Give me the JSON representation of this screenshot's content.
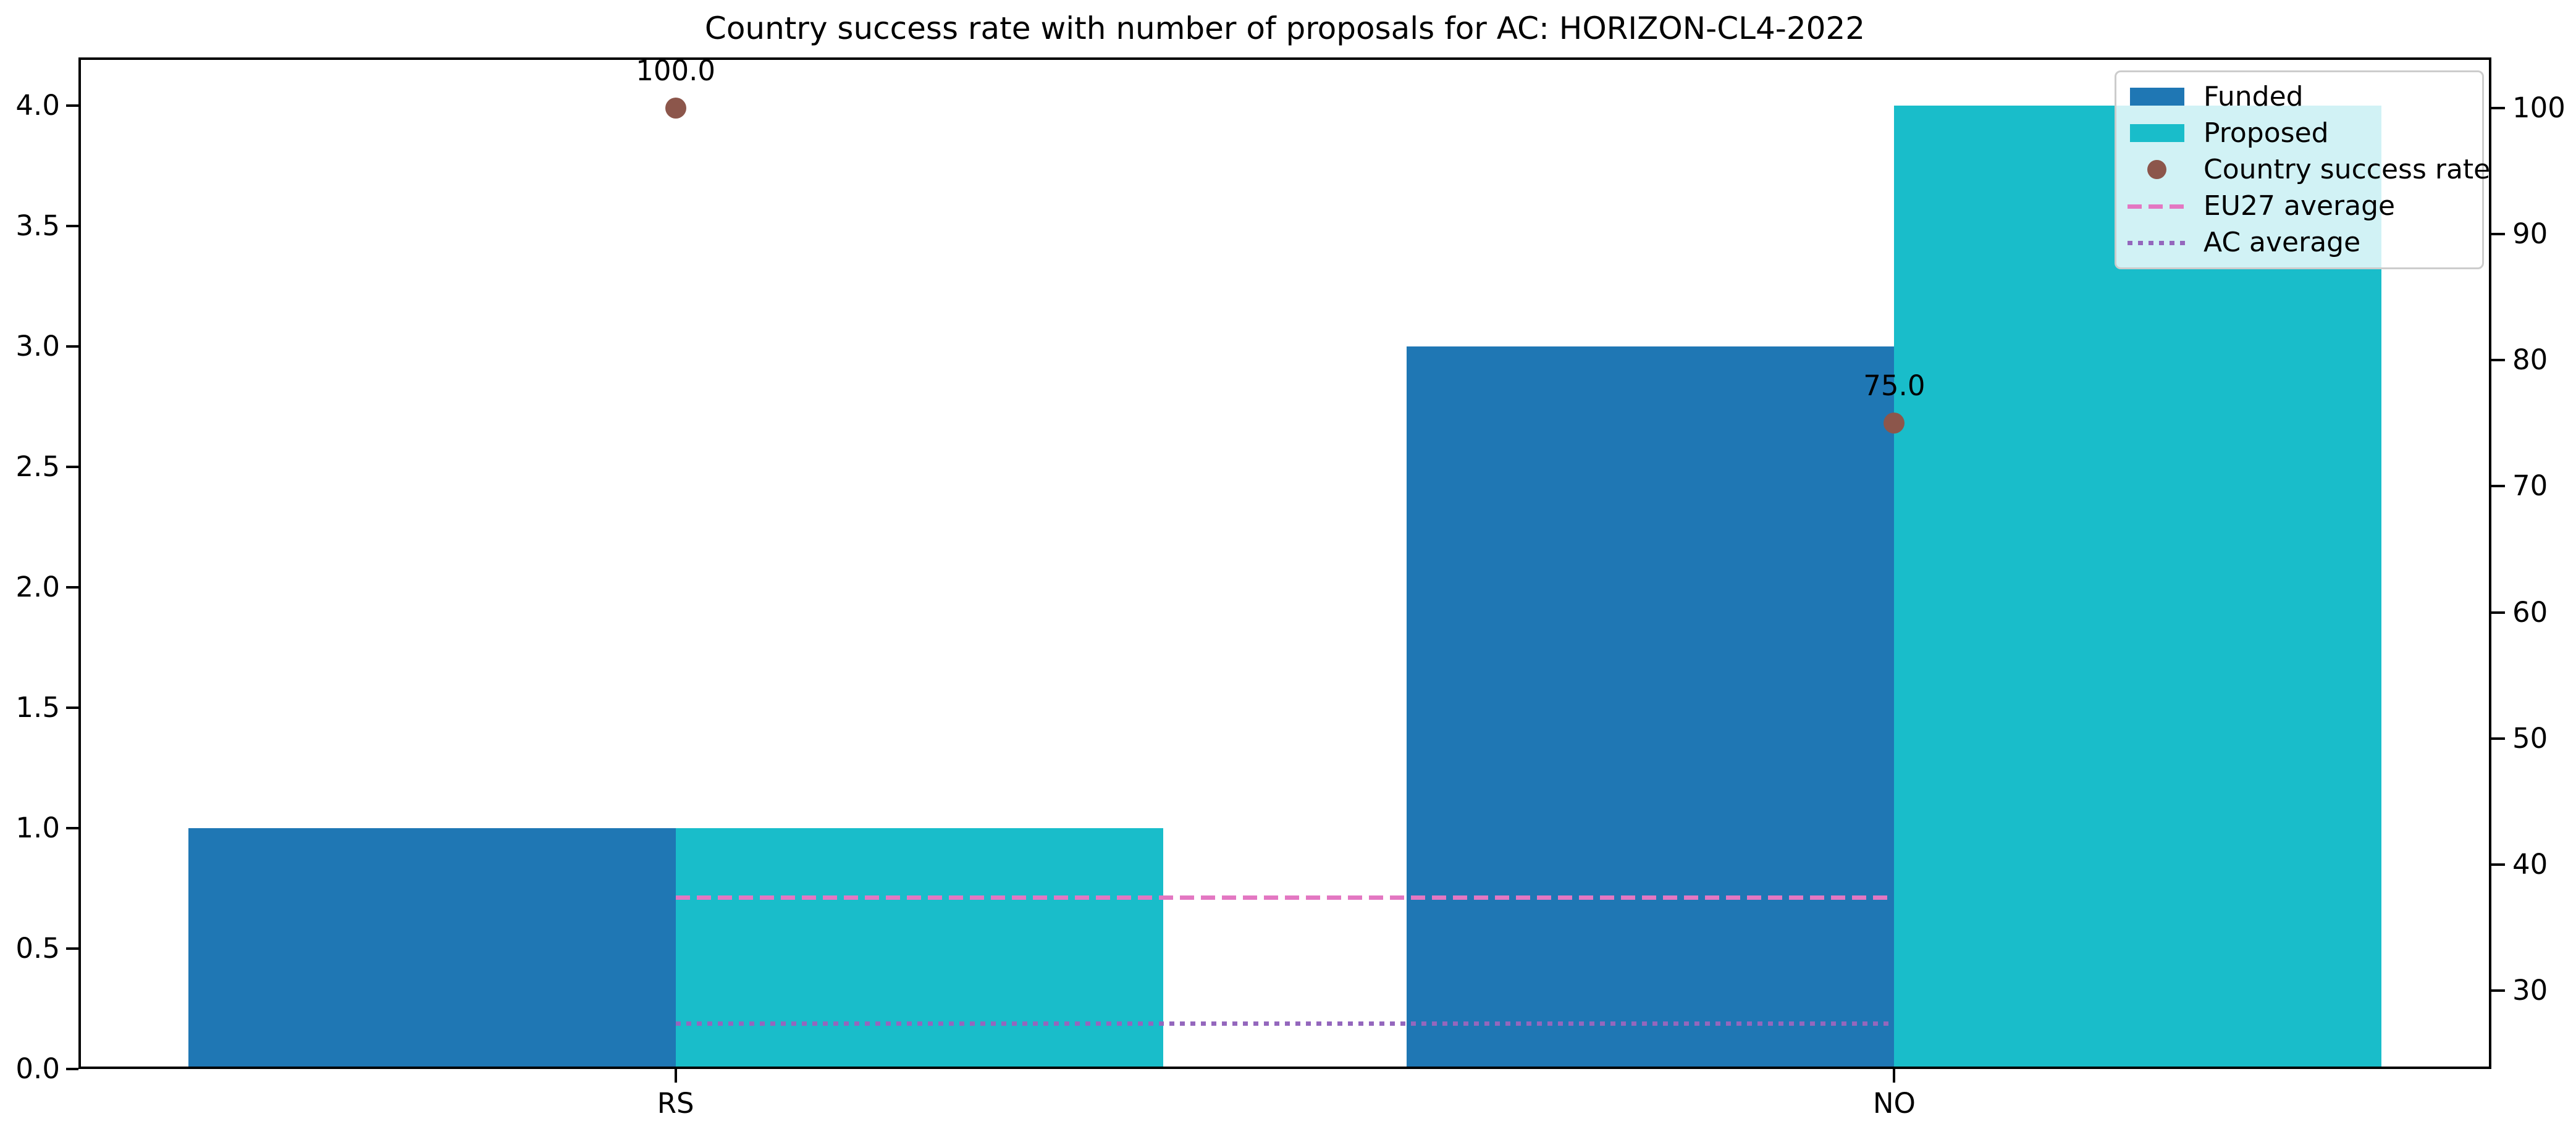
{
  "title": "Country success rate with number of proposals for AC: HORIZON-CL4-2022",
  "chart_data": {
    "type": "bar",
    "title": "Country success rate with number of proposals for AC: HORIZON-CL4-2022",
    "categories": [
      "RS",
      "NO"
    ],
    "series": [
      {
        "name": "Funded",
        "color": "#1f77b4",
        "axis": "left",
        "values": [
          1,
          3
        ]
      },
      {
        "name": "Proposed",
        "color": "#19bdca",
        "axis": "left",
        "values": [
          1,
          4
        ]
      }
    ],
    "scatter": {
      "name": "Country success rate",
      "color": "#8c564b",
      "axis": "right",
      "values": [
        100.0,
        75.0
      ],
      "labels": [
        "100.0",
        "75.0"
      ]
    },
    "reference_lines": [
      {
        "name": "EU27 average",
        "color": "#e377c2",
        "style": "dashed",
        "axis": "right",
        "value": 37.4
      },
      {
        "name": "AC average",
        "color": "#9467bd",
        "style": "dotted",
        "axis": "right",
        "value": 27.4
      }
    ],
    "left_axis": {
      "tick_labels": [
        "0.0",
        "0.5",
        "1.0",
        "1.5",
        "2.0",
        "2.5",
        "3.0",
        "3.5",
        "4.0"
      ],
      "ylim": [
        0,
        4.2
      ]
    },
    "right_axis": {
      "tick_labels": [
        "30",
        "40",
        "50",
        "60",
        "70",
        "80",
        "90",
        "100"
      ],
      "ylim": [
        23.8,
        104.0
      ]
    },
    "xlim": [
      -0.49,
      1.49
    ],
    "bar_width": 0.4,
    "grid": false,
    "legend_position": "upper right"
  },
  "legend": {
    "items": [
      {
        "label": "Funded",
        "kind": "patch",
        "color": "#1f77b4"
      },
      {
        "label": "Proposed",
        "kind": "patch",
        "color": "#19bdca"
      },
      {
        "label": "Country success rate",
        "kind": "dot",
        "color": "#8c564b"
      },
      {
        "label": "EU27 average",
        "kind": "dashed-line",
        "color": "#e377c2"
      },
      {
        "label": "AC average",
        "kind": "dotted-line",
        "color": "#9467bd"
      }
    ]
  }
}
